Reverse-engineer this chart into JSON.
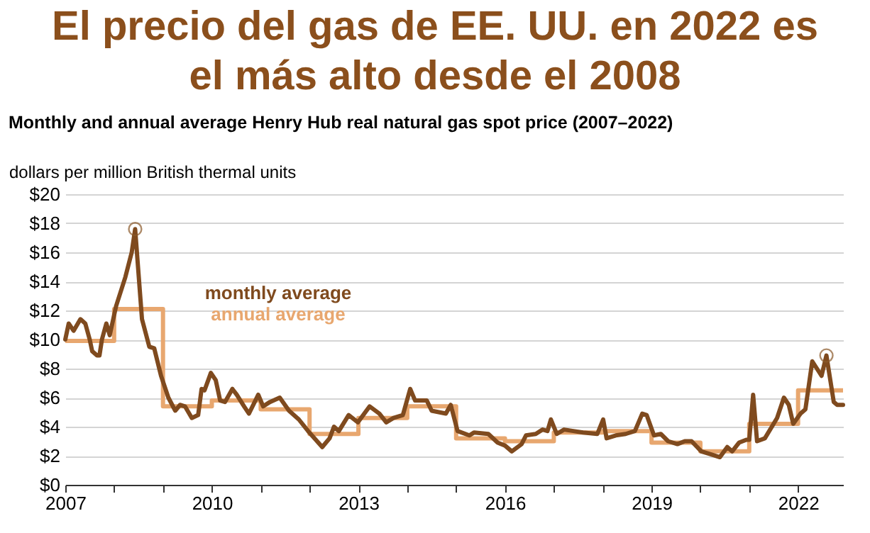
{
  "chart_data": {
    "type": "line",
    "title": "El precio del gas de EE. UU. en 2022 es el más alto desde el 2008",
    "subtitle": "Monthly and annual average Henry Hub real natural gas spot price (2007–2022)",
    "ylabel": "dollars per million British thermal units",
    "xlim": [
      2007,
      2022.92
    ],
    "ylim": [
      0,
      20
    ],
    "xticks": [
      {
        "value": 2007,
        "label": "2007"
      },
      {
        "value": 2008,
        "label": null
      },
      {
        "value": 2009,
        "label": null
      },
      {
        "value": 2010,
        "label": "2010"
      },
      {
        "value": 2011,
        "label": null
      },
      {
        "value": 2012,
        "label": null
      },
      {
        "value": 2013,
        "label": "2013"
      },
      {
        "value": 2014,
        "label": null
      },
      {
        "value": 2015,
        "label": null
      },
      {
        "value": 2016,
        "label": "2016"
      },
      {
        "value": 2017,
        "label": null
      },
      {
        "value": 2018,
        "label": null
      },
      {
        "value": 2019,
        "label": "2019"
      },
      {
        "value": 2020,
        "label": null
      },
      {
        "value": 2021,
        "label": null
      },
      {
        "value": 2022,
        "label": "2022"
      }
    ],
    "yticks": [
      {
        "value": 0,
        "label": "$0"
      },
      {
        "value": 2,
        "label": "$2"
      },
      {
        "value": 4,
        "label": "$4"
      },
      {
        "value": 6,
        "label": "$6"
      },
      {
        "value": 8,
        "label": "$8"
      },
      {
        "value": 10,
        "label": "$10"
      },
      {
        "value": 12,
        "label": "$12"
      },
      {
        "value": 14,
        "label": "$14"
      },
      {
        "value": 16,
        "label": "$16"
      },
      {
        "value": 18,
        "label": "$18"
      },
      {
        "value": 20,
        "label": "$20"
      }
    ],
    "grid": "y",
    "legend": false,
    "line_style": "solid",
    "series": [
      {
        "name": "annual average",
        "type": "step",
        "color": "#e8a76f",
        "x": [
          2007,
          2008,
          2009,
          2010,
          2011,
          2012,
          2013,
          2014,
          2015,
          2016,
          2017,
          2018,
          2019,
          2020,
          2021,
          2022,
          2022.92
        ],
        "values": [
          9.9,
          12.1,
          5.4,
          5.8,
          5.2,
          3.5,
          4.6,
          5.4,
          3.2,
          3.0,
          3.6,
          3.7,
          2.9,
          2.3,
          4.2,
          6.5,
          6.5
        ]
      },
      {
        "name": "monthly average",
        "type": "line",
        "color": "#7f4a1e",
        "x": [
          2007.0,
          2007.07,
          2007.17,
          2007.31,
          2007.41,
          2007.5,
          2007.55,
          2007.65,
          2007.7,
          2007.75,
          2007.84,
          2007.91,
          2008.04,
          2008.23,
          2008.36,
          2008.43,
          2008.57,
          2008.72,
          2008.82,
          2008.96,
          2009.11,
          2009.25,
          2009.35,
          2009.45,
          2009.59,
          2009.72,
          2009.79,
          2009.85,
          2009.98,
          2010.08,
          2010.17,
          2010.27,
          2010.42,
          2010.51,
          2010.66,
          2010.76,
          2010.95,
          2011.05,
          2011.19,
          2011.39,
          2011.58,
          2011.78,
          2011.97,
          2012.26,
          2012.41,
          2012.5,
          2012.6,
          2012.8,
          2012.99,
          2013.23,
          2013.43,
          2013.57,
          2013.72,
          2013.91,
          2014.06,
          2014.16,
          2014.4,
          2014.5,
          2014.79,
          2014.89,
          2015.03,
          2015.27,
          2015.37,
          2015.66,
          2015.85,
          2016.0,
          2016.14,
          2016.34,
          2016.43,
          2016.63,
          2016.77,
          2016.87,
          2016.94,
          2017.06,
          2017.21,
          2017.4,
          2017.6,
          2017.89,
          2018.01,
          2018.08,
          2018.27,
          2018.47,
          2018.66,
          2018.81,
          2018.9,
          2019.05,
          2019.19,
          2019.34,
          2019.53,
          2019.68,
          2019.82,
          2020.02,
          2020.21,
          2020.4,
          2020.55,
          2020.65,
          2020.79,
          2020.94,
          2021.0,
          2021.08,
          2021.16,
          2021.32,
          2021.57,
          2021.71,
          2021.81,
          2021.9,
          2022.05,
          2022.15,
          2022.29,
          2022.48,
          2022.58,
          2022.73,
          2022.8,
          2022.92
        ],
        "values": [
          10.0,
          11.1,
          10.6,
          11.4,
          11.1,
          10.0,
          9.2,
          8.9,
          8.9,
          10.0,
          11.1,
          10.3,
          12.3,
          14.3,
          16.0,
          17.6,
          11.4,
          9.5,
          9.4,
          7.5,
          6.0,
          5.1,
          5.5,
          5.4,
          4.6,
          4.8,
          6.6,
          6.5,
          7.7,
          7.2,
          5.8,
          5.7,
          6.6,
          6.2,
          5.4,
          4.9,
          6.2,
          5.4,
          5.7,
          6.0,
          5.1,
          4.5,
          3.7,
          2.6,
          3.2,
          4.0,
          3.7,
          4.8,
          4.3,
          5.4,
          4.9,
          4.3,
          4.6,
          4.8,
          6.6,
          5.8,
          5.8,
          5.1,
          4.9,
          5.5,
          3.7,
          3.4,
          3.6,
          3.5,
          2.9,
          2.7,
          2.3,
          2.8,
          3.4,
          3.5,
          3.8,
          3.7,
          4.5,
          3.5,
          3.8,
          3.7,
          3.6,
          3.5,
          4.5,
          3.2,
          3.4,
          3.5,
          3.7,
          4.9,
          4.8,
          3.4,
          3.5,
          3.0,
          2.8,
          3.0,
          3.0,
          2.3,
          2.1,
          1.9,
          2.6,
          2.3,
          2.9,
          3.1,
          3.1,
          6.2,
          3.0,
          3.2,
          4.6,
          6.0,
          5.5,
          4.2,
          4.9,
          5.2,
          8.5,
          7.5,
          8.9,
          5.7,
          5.5,
          5.5
        ]
      },
      {
        "type": "scatter",
        "marker": "circle",
        "color": "#8b5a2b",
        "x": [
          2008.43,
          2022.58
        ],
        "values": [
          17.6,
          8.9
        ]
      }
    ]
  }
}
